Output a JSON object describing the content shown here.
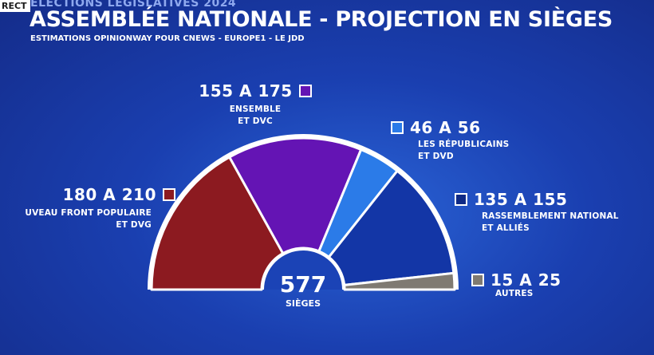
{
  "header": {
    "live_tag": "RECT",
    "kicker": "ÉLECTIONS LÉGISLATIVES 2024",
    "title": "ASSEMBLÉE NATIONALE - PROJECTION EN SIÈGES",
    "subtitle": "ESTIMATIONS OPINIONWAY POUR CNEWS - EUROPE1 - LE JDD"
  },
  "chart_data": {
    "type": "pie",
    "subtype": "hemicycle",
    "title": "ASSEMBLÉE NATIONALE - PROJECTION EN SIÈGES",
    "total": {
      "value": "577",
      "label": "SIÈGES"
    },
    "series": [
      {
        "name": "NOUVEAU FRONT POPULAIRE ET DVG",
        "line1": "UVEAU FRONT POPULAIRE",
        "line2": "ET DVG",
        "range": "180 A 210",
        "min": 180,
        "max": 210,
        "color": "#8c1a20",
        "swatch_color": "#8c1a20"
      },
      {
        "name": "ENSEMBLE ET DVC",
        "line1": "ENSEMBLE",
        "line2": "ET DVC",
        "range": "155 A 175",
        "min": 155,
        "max": 175,
        "color": "#6414b4",
        "swatch_color": "#6414b4"
      },
      {
        "name": "LES RÉPUBLICAINS ET DVD",
        "line1": "LES RÉPUBLICAINS",
        "line2": "ET DVD",
        "range": "46 A 56",
        "min": 46,
        "max": 56,
        "color": "#2b7be8",
        "swatch_color": "#2b7be8"
      },
      {
        "name": "RASSEMBLEMENT NATIONAL ET ALLIÉS",
        "line1": "RASSEMBLEMENT NATIONAL",
        "line2": "ET ALLIÉS",
        "range": "135 A 155",
        "min": 135,
        "max": 155,
        "color": "#1336a6",
        "swatch_color": "#0f2a86"
      },
      {
        "name": "AUTRES",
        "line1": "AUTRES",
        "line2": "",
        "range": "15 A 25",
        "min": 15,
        "max": 25,
        "color": "#7f7a72",
        "swatch_color": "#7f7a72"
      }
    ]
  }
}
